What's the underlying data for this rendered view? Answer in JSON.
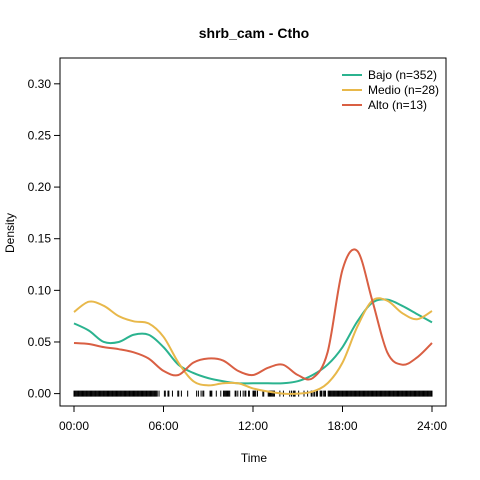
{
  "chart_data": {
    "type": "line",
    "title": "shrb_cam - Ctho",
    "xlabel": "Time",
    "ylabel": "Density",
    "xlim": [
      0,
      24
    ],
    "ylim": [
      -0.012,
      0.325
    ],
    "x_ticks": [
      0,
      6,
      12,
      18,
      24
    ],
    "x_tick_labels": [
      "00:00",
      "06:00",
      "12:00",
      "18:00",
      "24:00"
    ],
    "y_ticks": [
      0.0,
      0.05,
      0.1,
      0.15,
      0.2,
      0.25,
      0.3
    ],
    "y_tick_labels": [
      "0.00",
      "0.05",
      "0.10",
      "0.15",
      "0.20",
      "0.25",
      "0.30"
    ],
    "legend_position": "top-right",
    "grid": false,
    "series": [
      {
        "name": "Bajo (n=352)",
        "color": "#2bb38f",
        "x": [
          0,
          1,
          2,
          3,
          4,
          5,
          6,
          7,
          8,
          9,
          10,
          11,
          12,
          13,
          14,
          15,
          16,
          17,
          18,
          19,
          20,
          21,
          22,
          23,
          24
        ],
        "y": [
          0.068,
          0.061,
          0.05,
          0.05,
          0.057,
          0.057,
          0.045,
          0.028,
          0.02,
          0.015,
          0.012,
          0.01,
          0.01,
          0.01,
          0.01,
          0.012,
          0.018,
          0.028,
          0.045,
          0.07,
          0.088,
          0.091,
          0.085,
          0.077,
          0.069
        ]
      },
      {
        "name": "Medio (n=28)",
        "color": "#e8b84a",
        "x": [
          0,
          1,
          2,
          3,
          4,
          5,
          6,
          7,
          8,
          9,
          10,
          11,
          12,
          13,
          14,
          15,
          16,
          17,
          18,
          19,
          20,
          21,
          22,
          23,
          24
        ],
        "y": [
          0.079,
          0.089,
          0.085,
          0.075,
          0.07,
          0.068,
          0.055,
          0.03,
          0.012,
          0.008,
          0.01,
          0.01,
          0.005,
          0.002,
          0.0,
          0.0,
          0.002,
          0.01,
          0.03,
          0.065,
          0.09,
          0.09,
          0.078,
          0.072,
          0.08
        ]
      },
      {
        "name": "Alto (n=13)",
        "color": "#d95f43",
        "x": [
          0,
          1,
          2,
          3,
          4,
          5,
          6,
          7,
          8,
          9,
          10,
          11,
          12,
          13,
          14,
          15,
          16,
          17,
          18,
          19,
          20,
          21,
          22,
          23,
          24
        ],
        "y": [
          0.049,
          0.048,
          0.045,
          0.043,
          0.04,
          0.034,
          0.022,
          0.018,
          0.03,
          0.034,
          0.032,
          0.022,
          0.018,
          0.025,
          0.028,
          0.018,
          0.015,
          0.04,
          0.12,
          0.138,
          0.09,
          0.04,
          0.028,
          0.035,
          0.049
        ]
      }
    ]
  }
}
